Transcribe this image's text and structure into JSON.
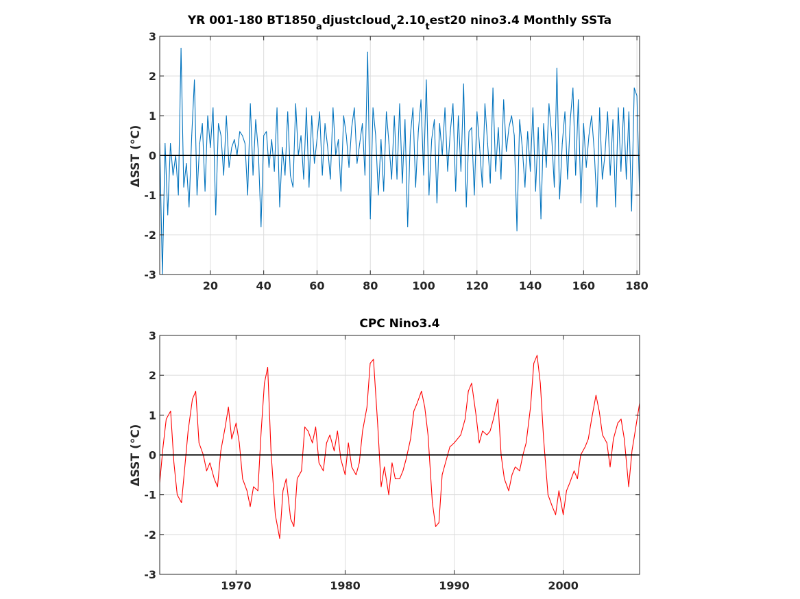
{
  "chart_data": [
    {
      "type": "line",
      "title": "YR 001-180 BT1850_adjustcloud_v2.10_test20 nino3.4 Monthly SSTa",
      "ylabel": "ΔSST (°C)",
      "xlim": [
        1,
        181
      ],
      "ylim": [
        -3,
        3
      ],
      "xticks": [
        20,
        40,
        60,
        80,
        100,
        120,
        140,
        160,
        180
      ],
      "yticks": [
        -3,
        -2,
        -1,
        0,
        1,
        2,
        3
      ],
      "grid": true,
      "color": "#0072bd",
      "zero_line": true,
      "series": [
        {
          "x": [
            1,
            2,
            3,
            4,
            5,
            6,
            7,
            8,
            9,
            10,
            11,
            12,
            13,
            14,
            15,
            16,
            17,
            18,
            19,
            20,
            21,
            22,
            23,
            24,
            25,
            26,
            27,
            28,
            29,
            30,
            31,
            32,
            33,
            34,
            35,
            36,
            37,
            38,
            39,
            40,
            41,
            42,
            43,
            44,
            45,
            46,
            47,
            48,
            49,
            50,
            51,
            52,
            53,
            54,
            55,
            56,
            57,
            58,
            59,
            60,
            61,
            62,
            63,
            64,
            65,
            66,
            67,
            68,
            69,
            70,
            71,
            72,
            73,
            74,
            75,
            76,
            77,
            78,
            79,
            80,
            81,
            82,
            83,
            84,
            85,
            86,
            87,
            88,
            89,
            90,
            91,
            92,
            93,
            94,
            95,
            96,
            97,
            98,
            99,
            100,
            101,
            102,
            103,
            104,
            105,
            106,
            107,
            108,
            109,
            110,
            111,
            112,
            113,
            114,
            115,
            116,
            117,
            118,
            119,
            120,
            121,
            122,
            123,
            124,
            125,
            126,
            127,
            128,
            129,
            130,
            131,
            132,
            133,
            134,
            135,
            136,
            137,
            138,
            139,
            140,
            141,
            142,
            143,
            144,
            145,
            146,
            147,
            148,
            149,
            150,
            151,
            152,
            153,
            154,
            155,
            156,
            157,
            158,
            159,
            160,
            161,
            162,
            163,
            164,
            165,
            166,
            167,
            168,
            169,
            170,
            171,
            172,
            173,
            174,
            175,
            176,
            177,
            178,
            179,
            180,
            181
          ],
          "y": [
            0.3,
            -3.0,
            0.3,
            -1.5,
            0.3,
            -0.5,
            0.0,
            -1.0,
            2.7,
            -0.8,
            -0.2,
            -1.3,
            0.5,
            1.9,
            -1.0,
            0.3,
            0.8,
            -0.9,
            1.0,
            0.2,
            1.2,
            -1.5,
            0.8,
            0.5,
            -0.5,
            1.0,
            -0.3,
            0.2,
            0.4,
            0.0,
            0.6,
            0.5,
            0.3,
            -1.0,
            1.3,
            -0.5,
            0.9,
            0.1,
            -1.8,
            0.5,
            0.6,
            -0.3,
            0.4,
            -0.4,
            1.2,
            -1.3,
            0.2,
            -0.5,
            1.1,
            -0.5,
            -0.8,
            1.3,
            0.0,
            0.5,
            -0.6,
            1.2,
            -0.8,
            1.0,
            -0.2,
            0.4,
            1.1,
            -0.5,
            0.8,
            0.2,
            -0.6,
            1.2,
            0.0,
            0.4,
            -0.9,
            1.0,
            0.5,
            -0.3,
            0.7,
            1.2,
            -0.2,
            0.3,
            0.8,
            -0.5,
            2.6,
            -1.6,
            1.2,
            0.5,
            -1.0,
            0.4,
            -0.9,
            1.1,
            0.3,
            -0.6,
            1.0,
            -0.6,
            1.3,
            -0.7,
            0.9,
            -1.8,
            0.5,
            1.2,
            -0.8,
            0.6,
            1.4,
            -0.5,
            1.9,
            -1.0,
            0.4,
            0.9,
            -1.2,
            0.8,
            0.0,
            1.2,
            -0.4,
            0.6,
            1.3,
            -0.9,
            1.0,
            -0.4,
            1.8,
            -1.3,
            0.6,
            0.7,
            -1.0,
            1.1,
            0.2,
            -0.8,
            1.3,
            0.3,
            -0.7,
            1.7,
            -0.4,
            0.7,
            -0.6,
            1.4,
            0.1,
            0.7,
            1.0,
            0.5,
            -1.9,
            0.9,
            0.2,
            -0.8,
            0.6,
            -0.4,
            1.2,
            -0.9,
            0.7,
            -1.6,
            0.8,
            -0.3,
            1.3,
            0.5,
            -0.8,
            2.2,
            -1.1,
            0.3,
            1.1,
            -0.6,
            0.9,
            1.7,
            -0.5,
            1.4,
            -1.2,
            0.8,
            -0.3,
            0.5,
            1.0,
            0.1,
            -1.3,
            1.2,
            -0.6,
            0.0,
            1.1,
            -0.5,
            0.9,
            -1.3,
            1.2,
            -0.4,
            1.2,
            -0.6,
            1.1,
            -1.4,
            1.7,
            1.5,
            -1.0
          ]
        }
      ]
    },
    {
      "type": "line",
      "title": "CPC Nino3.4",
      "ylabel": "ΔSST (°C)",
      "xlim": [
        1963,
        2007
      ],
      "ylim": [
        -3,
        3
      ],
      "xticks": [
        1970,
        1980,
        1990,
        2000
      ],
      "yticks": [
        -3,
        -2,
        -1,
        0,
        1,
        2,
        3
      ],
      "grid": true,
      "color": "#ff0000",
      "zero_line": true,
      "series": [
        {
          "x": [
            1963.0,
            1963.3,
            1963.6,
            1964.0,
            1964.3,
            1964.6,
            1965.0,
            1965.3,
            1965.6,
            1966.0,
            1966.3,
            1966.6,
            1967.0,
            1967.3,
            1967.6,
            1968.0,
            1968.3,
            1968.6,
            1969.0,
            1969.3,
            1969.6,
            1970.0,
            1970.3,
            1970.6,
            1971.0,
            1971.3,
            1971.6,
            1972.0,
            1972.3,
            1972.6,
            1972.9,
            1973.2,
            1973.6,
            1974.0,
            1974.3,
            1974.6,
            1975.0,
            1975.3,
            1975.6,
            1976.0,
            1976.3,
            1976.6,
            1977.0,
            1977.3,
            1977.6,
            1978.0,
            1978.3,
            1978.6,
            1979.0,
            1979.3,
            1979.6,
            1980.0,
            1980.3,
            1980.6,
            1981.0,
            1981.3,
            1981.6,
            1982.0,
            1982.3,
            1982.6,
            1983.0,
            1983.3,
            1983.6,
            1984.0,
            1984.3,
            1984.6,
            1985.0,
            1985.3,
            1985.6,
            1986.0,
            1986.3,
            1986.6,
            1987.0,
            1987.3,
            1987.6,
            1988.0,
            1988.3,
            1988.6,
            1988.9,
            1989.2,
            1989.6,
            1990.0,
            1990.3,
            1990.6,
            1991.0,
            1991.3,
            1991.6,
            1992.0,
            1992.3,
            1992.6,
            1993.0,
            1993.3,
            1993.6,
            1994.0,
            1994.3,
            1994.6,
            1995.0,
            1995.3,
            1995.6,
            1996.0,
            1996.3,
            1996.6,
            1997.0,
            1997.3,
            1997.6,
            1997.9,
            1998.2,
            1998.6,
            1999.0,
            1999.3,
            1999.6,
            2000.0,
            2000.3,
            2000.6,
            2001.0,
            2001.3,
            2001.6,
            2002.0,
            2002.3,
            2002.6,
            2003.0,
            2003.3,
            2003.6,
            2004.0,
            2004.3,
            2004.6,
            2005.0,
            2005.3,
            2005.6,
            2006.0,
            2006.3,
            2006.6,
            2007.0
          ],
          "y": [
            -0.7,
            0.2,
            0.9,
            1.1,
            -0.2,
            -1.0,
            -1.2,
            -0.3,
            0.6,
            1.4,
            1.6,
            0.3,
            0.0,
            -0.4,
            -0.2,
            -0.6,
            -0.8,
            0.1,
            0.7,
            1.2,
            0.4,
            0.8,
            0.3,
            -0.6,
            -0.9,
            -1.3,
            -0.8,
            -0.9,
            0.6,
            1.8,
            2.2,
            0.1,
            -1.5,
            -2.1,
            -0.9,
            -0.6,
            -1.6,
            -1.8,
            -0.6,
            -0.4,
            0.7,
            0.6,
            0.3,
            0.7,
            -0.2,
            -0.4,
            0.3,
            0.5,
            0.1,
            0.6,
            -0.1,
            -0.5,
            0.3,
            -0.3,
            -0.5,
            -0.2,
            0.6,
            1.2,
            2.3,
            2.4,
            0.7,
            -0.8,
            -0.3,
            -1.0,
            -0.2,
            -0.6,
            -0.6,
            -0.4,
            -0.1,
            0.4,
            1.1,
            1.3,
            1.6,
            1.2,
            0.5,
            -1.2,
            -1.8,
            -1.7,
            -0.5,
            -0.2,
            0.2,
            0.3,
            0.4,
            0.5,
            0.9,
            1.6,
            1.8,
            1.0,
            0.3,
            0.6,
            0.5,
            0.6,
            0.9,
            1.4,
            0.0,
            -0.6,
            -0.9,
            -0.5,
            -0.3,
            -0.4,
            0.0,
            0.3,
            1.2,
            2.3,
            2.5,
            1.8,
            0.4,
            -1.0,
            -1.3,
            -1.5,
            -0.9,
            -1.5,
            -0.9,
            -0.7,
            -0.4,
            -0.6,
            0.0,
            0.2,
            0.4,
            0.9,
            1.5,
            1.1,
            0.5,
            0.3,
            -0.3,
            0.4,
            0.8,
            0.9,
            0.4,
            -0.8,
            0.1,
            0.6,
            1.3
          ]
        }
      ]
    }
  ]
}
